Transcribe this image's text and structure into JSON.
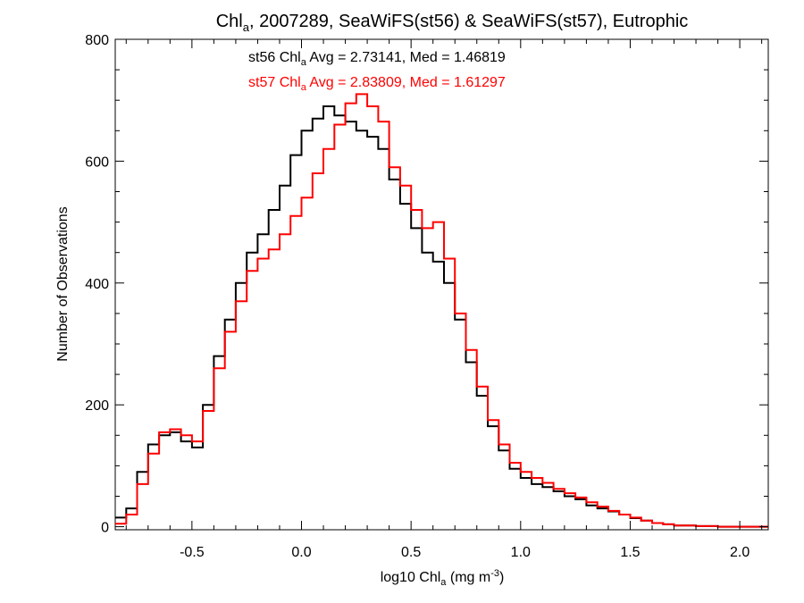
{
  "chart_data": {
    "type": "line",
    "style": "step-histogram",
    "title": {
      "prefix": "Chl",
      "prefix_sub": "a",
      "rest": ", 2007289, SeaWiFS(st56) & SeaWiFS(st57), Eutrophic"
    },
    "xlabel": {
      "pre": "log10 Chl",
      "sub": "a",
      "mid": " (mg m",
      "sup": "-3",
      "post": ")"
    },
    "ylabel": "Number of Observations",
    "xlim": [
      -0.85,
      2.13
    ],
    "ylim": [
      -5,
      800
    ],
    "x_ticks": [
      -0.5,
      0.0,
      0.5,
      1.0,
      1.5,
      2.0
    ],
    "x_tick_labels": [
      "-0.5",
      "0.0",
      "0.5",
      "1.0",
      "1.5",
      "2.0"
    ],
    "y_ticks": [
      0,
      200,
      400,
      600,
      800
    ],
    "y_tick_labels": [
      "0",
      "200",
      "400",
      "600",
      "800"
    ],
    "grid": false,
    "annotations": [
      {
        "series": "st56",
        "pre": "st56 Chl",
        "sub": "a",
        "post": " Avg = 2.73141, Med = 1.46819",
        "color": "#000000"
      },
      {
        "series": "st57",
        "pre": "st57 Chl",
        "sub": "a",
        "post": " Avg = 2.83809, Med = 1.61297",
        "color": "#ff0000"
      }
    ],
    "series": [
      {
        "name": "st56",
        "color": "#000000",
        "points": [
          [
            -0.85,
            15
          ],
          [
            -0.8,
            30
          ],
          [
            -0.75,
            90
          ],
          [
            -0.7,
            135
          ],
          [
            -0.65,
            150
          ],
          [
            -0.6,
            155
          ],
          [
            -0.55,
            140
          ],
          [
            -0.5,
            130
          ],
          [
            -0.45,
            200
          ],
          [
            -0.4,
            280
          ],
          [
            -0.35,
            340
          ],
          [
            -0.3,
            400
          ],
          [
            -0.25,
            450
          ],
          [
            -0.2,
            480
          ],
          [
            -0.15,
            520
          ],
          [
            -0.1,
            560
          ],
          [
            -0.05,
            610
          ],
          [
            0.0,
            650
          ],
          [
            0.05,
            670
          ],
          [
            0.1,
            690
          ],
          [
            0.15,
            675
          ],
          [
            0.2,
            665
          ],
          [
            0.25,
            650
          ],
          [
            0.3,
            640
          ],
          [
            0.35,
            620
          ],
          [
            0.4,
            570
          ],
          [
            0.45,
            530
          ],
          [
            0.5,
            490
          ],
          [
            0.55,
            450
          ],
          [
            0.6,
            435
          ],
          [
            0.65,
            400
          ],
          [
            0.7,
            340
          ],
          [
            0.75,
            270
          ],
          [
            0.8,
            215
          ],
          [
            0.85,
            165
          ],
          [
            0.9,
            125
          ],
          [
            0.95,
            95
          ],
          [
            1.0,
            80
          ],
          [
            1.05,
            70
          ],
          [
            1.1,
            65
          ],
          [
            1.15,
            58
          ],
          [
            1.2,
            50
          ],
          [
            1.25,
            45
          ],
          [
            1.3,
            35
          ],
          [
            1.35,
            30
          ],
          [
            1.4,
            25
          ],
          [
            1.45,
            20
          ],
          [
            1.5,
            14
          ],
          [
            1.55,
            10
          ],
          [
            1.6,
            6
          ],
          [
            1.65,
            4
          ],
          [
            1.7,
            2
          ],
          [
            1.8,
            1
          ],
          [
            1.9,
            0
          ],
          [
            2.0,
            0
          ],
          [
            2.1,
            0
          ]
        ]
      },
      {
        "name": "st57",
        "color": "#ff0000",
        "points": [
          [
            -0.85,
            5
          ],
          [
            -0.8,
            20
          ],
          [
            -0.75,
            70
          ],
          [
            -0.7,
            120
          ],
          [
            -0.65,
            155
          ],
          [
            -0.6,
            160
          ],
          [
            -0.55,
            150
          ],
          [
            -0.5,
            140
          ],
          [
            -0.45,
            190
          ],
          [
            -0.4,
            260
          ],
          [
            -0.35,
            320
          ],
          [
            -0.3,
            370
          ],
          [
            -0.25,
            420
          ],
          [
            -0.2,
            440
          ],
          [
            -0.15,
            455
          ],
          [
            -0.1,
            480
          ],
          [
            -0.05,
            510
          ],
          [
            0.0,
            540
          ],
          [
            0.05,
            580
          ],
          [
            0.1,
            620
          ],
          [
            0.15,
            660
          ],
          [
            0.2,
            695
          ],
          [
            0.25,
            710
          ],
          [
            0.3,
            690
          ],
          [
            0.35,
            665
          ],
          [
            0.4,
            590
          ],
          [
            0.45,
            560
          ],
          [
            0.5,
            520
          ],
          [
            0.55,
            490
          ],
          [
            0.6,
            500
          ],
          [
            0.65,
            440
          ],
          [
            0.7,
            350
          ],
          [
            0.75,
            290
          ],
          [
            0.8,
            230
          ],
          [
            0.85,
            175
          ],
          [
            0.9,
            135
          ],
          [
            0.95,
            105
          ],
          [
            1.0,
            90
          ],
          [
            1.05,
            80
          ],
          [
            1.1,
            72
          ],
          [
            1.15,
            62
          ],
          [
            1.2,
            55
          ],
          [
            1.25,
            48
          ],
          [
            1.3,
            40
          ],
          [
            1.35,
            33
          ],
          [
            1.4,
            26
          ],
          [
            1.45,
            20
          ],
          [
            1.5,
            15
          ],
          [
            1.55,
            10
          ],
          [
            1.6,
            6
          ],
          [
            1.65,
            4
          ],
          [
            1.7,
            2
          ],
          [
            1.8,
            1
          ],
          [
            1.9,
            0
          ],
          [
            2.0,
            0
          ],
          [
            2.1,
            0
          ]
        ]
      }
    ]
  }
}
